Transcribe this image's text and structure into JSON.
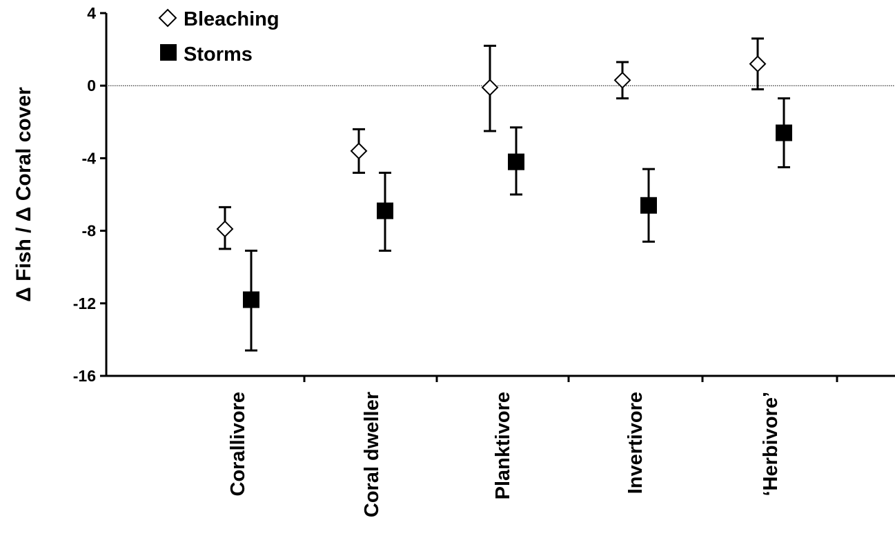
{
  "chart_data": {
    "type": "scatter",
    "ylabel": "Δ Fish / Δ Coral cover",
    "xlabel": "",
    "ylim": [
      -16,
      4
    ],
    "yticks": [
      4,
      0,
      -4,
      -8,
      -12,
      -16
    ],
    "categories": [
      "Corallivore",
      "Coral dweller",
      "Planktivore",
      "Invertivore",
      "‘Herbivore’"
    ],
    "reference_line": 0,
    "legend_position": "top-left",
    "series": [
      {
        "name": "Bleaching",
        "marker": "open-diamond",
        "values": [
          -7.9,
          -3.6,
          -0.1,
          0.3,
          1.2
        ],
        "err_low": [
          -9.0,
          -4.8,
          -2.5,
          -0.7,
          -0.2
        ],
        "err_high": [
          -6.7,
          -2.4,
          2.2,
          1.3,
          2.6
        ]
      },
      {
        "name": "Storms",
        "marker": "filled-square",
        "values": [
          -11.8,
          -6.9,
          -4.2,
          -6.6,
          -2.6
        ],
        "err_low": [
          -14.6,
          -9.1,
          -6.0,
          -8.6,
          -4.5
        ],
        "err_high": [
          -9.1,
          -4.8,
          -2.3,
          -4.6,
          -0.7
        ]
      }
    ]
  }
}
